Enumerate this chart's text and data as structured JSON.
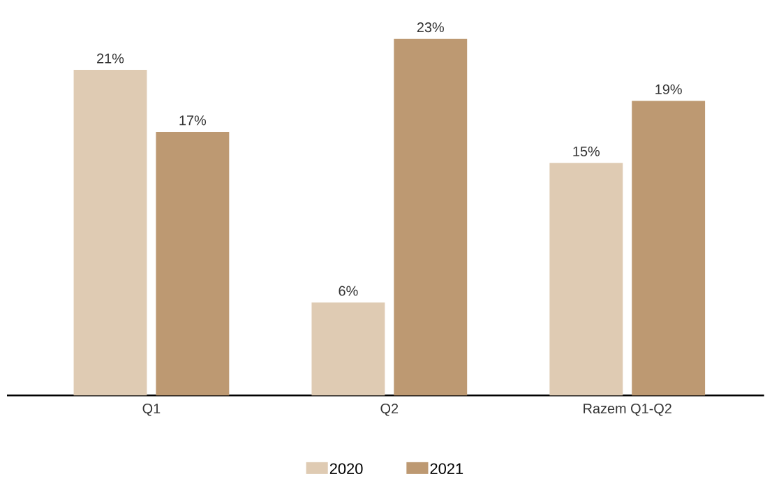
{
  "chart_data": {
    "type": "bar",
    "categories": [
      "Q1",
      "Q2",
      "Razem Q1-Q2"
    ],
    "series": [
      {
        "name": "2020",
        "color": "#dfcbb3",
        "values": [
          21,
          6,
          15
        ],
        "value_labels": [
          "21%",
          "6%",
          "15%"
        ]
      },
      {
        "name": "2021",
        "color": "#bd9972",
        "values": [
          17,
          23,
          19
        ],
        "value_labels": [
          "17%",
          "23%",
          "19%"
        ]
      }
    ],
    "legend": "bottom"
  }
}
